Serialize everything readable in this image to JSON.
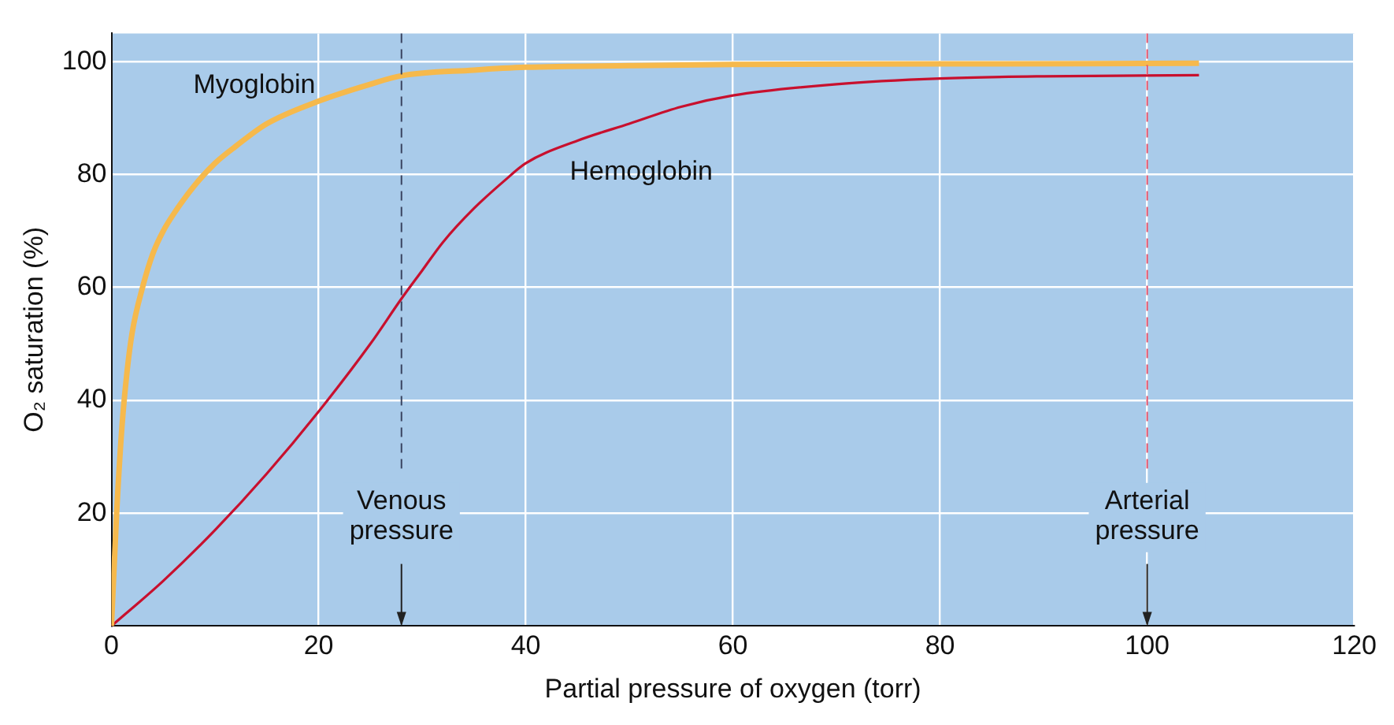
{
  "chart_data": {
    "type": "line",
    "xlabel": "Partial pressure of oxygen (torr)",
    "ylabel": "O₂ saturation (%)",
    "xlim": [
      0,
      120
    ],
    "xticks": [
      0,
      20,
      40,
      60,
      80,
      100,
      120
    ],
    "ylim": [
      0,
      105
    ],
    "yticks": [
      20,
      40,
      60,
      80,
      100
    ],
    "grid": true,
    "legend": false,
    "marker": "none",
    "line_style": "solid",
    "series": [
      {
        "name": "Myoglobin",
        "color": "#f6b94c",
        "x": [
          0,
          0.5,
          1,
          1.5,
          2,
          3,
          4,
          5,
          6,
          8,
          10,
          12,
          15,
          20,
          25,
          28,
          35,
          40,
          50,
          60,
          80,
          105
        ],
        "values": [
          0,
          20,
          35,
          45,
          52,
          60,
          66,
          70,
          73,
          78,
          82,
          85,
          89,
          93,
          96,
          97.5,
          98.5,
          99,
          99.3,
          99.5,
          99.6,
          99.7
        ]
      },
      {
        "name": "Hemoglobin",
        "color": "#c8102e",
        "x": [
          0,
          5,
          10,
          15,
          20,
          25,
          28,
          30,
          32,
          35,
          38,
          40,
          45,
          50,
          55,
          60,
          70,
          80,
          90,
          105
        ],
        "values": [
          0,
          8,
          17,
          27,
          38,
          50,
          58,
          63,
          68,
          74,
          79,
          82,
          86,
          89,
          92,
          94,
          96,
          97,
          97.4,
          97.6
        ]
      }
    ],
    "ref_lines": [
      {
        "axis": "x",
        "value": 28,
        "label": "Venous\npressure",
        "color": "#3a4460",
        "line_style": "dashed"
      },
      {
        "axis": "x",
        "value": 100,
        "label": "Arterial\npressure",
        "color": "#e0506a",
        "line_style": "dashed"
      }
    ]
  }
}
